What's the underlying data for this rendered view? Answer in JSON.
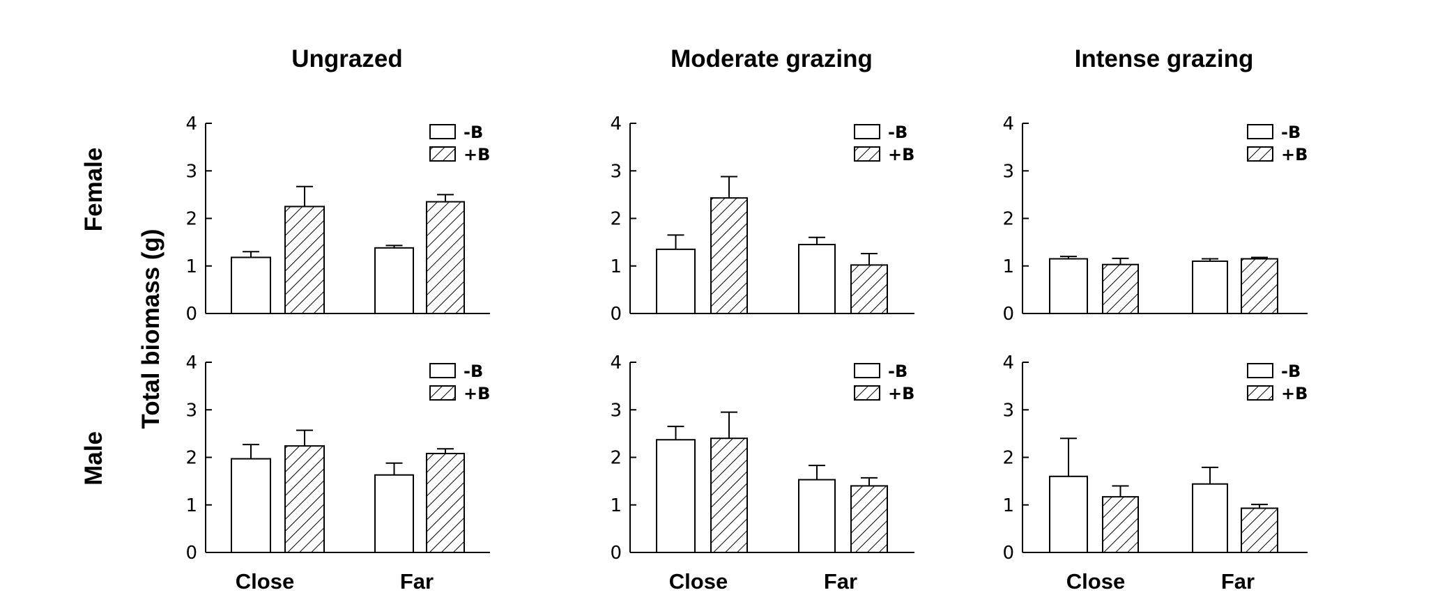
{
  "figure": {
    "ylabel": "Total biomass (g)",
    "column_titles": [
      "Ungrazed",
      "Moderate grazing",
      "Intense grazing"
    ],
    "row_labels": [
      "Female",
      "Male"
    ]
  },
  "chart_data": [
    {
      "type": "bar",
      "title": "Ungrazed",
      "row": "Female",
      "categories": [
        "Close",
        "Far"
      ],
      "ylim": [
        0,
        4
      ],
      "yticks": [
        0,
        1,
        2,
        3,
        4
      ],
      "legend_position": "top-right",
      "series": [
        {
          "name": "-B",
          "fill": "open",
          "values": [
            1.18,
            1.38
          ],
          "errors": [
            0.12,
            0.05
          ]
        },
        {
          "name": "+B",
          "fill": "hatched",
          "values": [
            2.25,
            2.35
          ],
          "errors": [
            0.42,
            0.15
          ]
        }
      ]
    },
    {
      "type": "bar",
      "title": "Moderate grazing",
      "row": "Female",
      "categories": [
        "Close",
        "Far"
      ],
      "ylim": [
        0,
        4
      ],
      "yticks": [
        0,
        1,
        2,
        3,
        4
      ],
      "legend_position": "top-right",
      "series": [
        {
          "name": "-B",
          "fill": "open",
          "values": [
            1.35,
            1.45
          ],
          "errors": [
            0.3,
            0.15
          ]
        },
        {
          "name": "+B",
          "fill": "hatched",
          "values": [
            2.43,
            1.02
          ],
          "errors": [
            0.45,
            0.24
          ]
        }
      ]
    },
    {
      "type": "bar",
      "title": "Intense grazing",
      "row": "Female",
      "categories": [
        "Close",
        "Far"
      ],
      "ylim": [
        0,
        4
      ],
      "yticks": [
        0,
        1,
        2,
        3,
        4
      ],
      "legend_position": "top-right",
      "series": [
        {
          "name": "-B",
          "fill": "open",
          "values": [
            1.15,
            1.1
          ],
          "errors": [
            0.05,
            0.05
          ]
        },
        {
          "name": "+B",
          "fill": "hatched",
          "values": [
            1.03,
            1.15
          ],
          "errors": [
            0.13,
            0.03
          ]
        }
      ]
    },
    {
      "type": "bar",
      "title": "Ungrazed",
      "row": "Male",
      "categories": [
        "Close",
        "Far"
      ],
      "ylim": [
        0,
        4
      ],
      "yticks": [
        0,
        1,
        2,
        3,
        4
      ],
      "legend_position": "top-right",
      "series": [
        {
          "name": "-B",
          "fill": "open",
          "values": [
            1.97,
            1.63
          ],
          "errors": [
            0.3,
            0.25
          ]
        },
        {
          "name": "+B",
          "fill": "hatched",
          "values": [
            2.24,
            2.08
          ],
          "errors": [
            0.33,
            0.1
          ]
        }
      ]
    },
    {
      "type": "bar",
      "title": "Moderate grazing",
      "row": "Male",
      "categories": [
        "Close",
        "Far"
      ],
      "ylim": [
        0,
        4
      ],
      "yticks": [
        0,
        1,
        2,
        3,
        4
      ],
      "legend_position": "top-right",
      "series": [
        {
          "name": "-B",
          "fill": "open",
          "values": [
            2.37,
            1.53
          ],
          "errors": [
            0.28,
            0.3
          ]
        },
        {
          "name": "+B",
          "fill": "hatched",
          "values": [
            2.4,
            1.4
          ],
          "errors": [
            0.55,
            0.17
          ]
        }
      ]
    },
    {
      "type": "bar",
      "title": "Intense grazing",
      "row": "Male",
      "categories": [
        "Close",
        "Far"
      ],
      "ylim": [
        0,
        4
      ],
      "yticks": [
        0,
        1,
        2,
        3,
        4
      ],
      "legend_position": "top-right",
      "series": [
        {
          "name": "-B",
          "fill": "open",
          "values": [
            1.6,
            1.44
          ],
          "errors": [
            0.8,
            0.35
          ]
        },
        {
          "name": "+B",
          "fill": "hatched",
          "values": [
            1.17,
            0.93
          ],
          "errors": [
            0.23,
            0.08
          ]
        }
      ]
    }
  ]
}
